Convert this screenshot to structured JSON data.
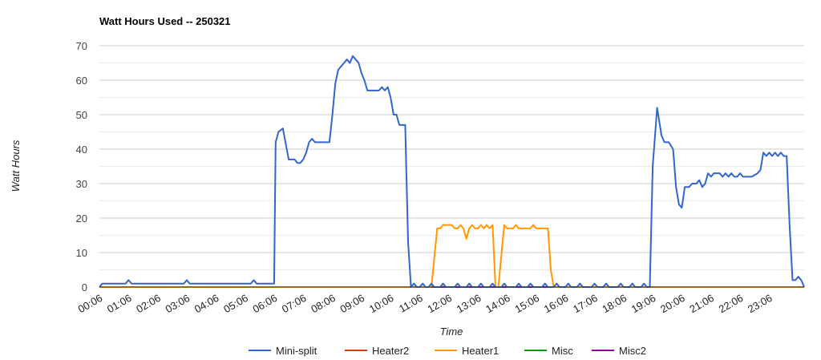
{
  "chart_data": {
    "type": "line",
    "title": "Watt Hours Used -- 250321",
    "xlabel": "Time",
    "ylabel": "Watt Hours",
    "ylim": [
      0,
      70
    ],
    "yticks": [
      0,
      10,
      20,
      30,
      40,
      50,
      60,
      70
    ],
    "xticks": [
      "00:06",
      "01:06",
      "02:06",
      "03:06",
      "04:06",
      "05:06",
      "06:06",
      "07:06",
      "08:06",
      "09:06",
      "10:06",
      "11:06",
      "12:06",
      "13:06",
      "14:06",
      "15:06",
      "16:06",
      "17:06",
      "18:06",
      "19:06",
      "20:06",
      "21:06",
      "22:06",
      "23:06"
    ],
    "grid": true,
    "legend_position": "bottom",
    "x_units": "hours after 00:06",
    "series": [
      {
        "name": "Mini-split",
        "color": "#3366cc",
        "points": [
          [
            0,
            0
          ],
          [
            0.1,
            1
          ],
          [
            0.3,
            1
          ],
          [
            0.6,
            1
          ],
          [
            0.9,
            1
          ],
          [
            1.0,
            2
          ],
          [
            1.1,
            1
          ],
          [
            1.4,
            1
          ],
          [
            1.7,
            1
          ],
          [
            2.0,
            1
          ],
          [
            2.3,
            1
          ],
          [
            2.6,
            1
          ],
          [
            2.9,
            1
          ],
          [
            3.0,
            2
          ],
          [
            3.1,
            1
          ],
          [
            3.4,
            1
          ],
          [
            3.7,
            1
          ],
          [
            4.0,
            1
          ],
          [
            4.3,
            1
          ],
          [
            4.6,
            1
          ],
          [
            4.9,
            1
          ],
          [
            5.2,
            1
          ],
          [
            5.3,
            2
          ],
          [
            5.4,
            1
          ],
          [
            5.6,
            1
          ],
          [
            6.0,
            1
          ],
          [
            6.05,
            42
          ],
          [
            6.15,
            45
          ],
          [
            6.3,
            46
          ],
          [
            6.5,
            37
          ],
          [
            6.7,
            37
          ],
          [
            6.8,
            36
          ],
          [
            6.9,
            36
          ],
          [
            7.0,
            37
          ],
          [
            7.1,
            39
          ],
          [
            7.2,
            42
          ],
          [
            7.3,
            43
          ],
          [
            7.4,
            42
          ],
          [
            7.6,
            42
          ],
          [
            7.9,
            42
          ],
          [
            8.0,
            50
          ],
          [
            8.1,
            59
          ],
          [
            8.2,
            63
          ],
          [
            8.4,
            65
          ],
          [
            8.5,
            66
          ],
          [
            8.6,
            65
          ],
          [
            8.7,
            67
          ],
          [
            8.8,
            66
          ],
          [
            8.9,
            65
          ],
          [
            9.0,
            62
          ],
          [
            9.1,
            60
          ],
          [
            9.2,
            57
          ],
          [
            9.4,
            57
          ],
          [
            9.6,
            57
          ],
          [
            9.7,
            58
          ],
          [
            9.8,
            57
          ],
          [
            9.9,
            58
          ],
          [
            10.0,
            55
          ],
          [
            10.1,
            50
          ],
          [
            10.2,
            50
          ],
          [
            10.3,
            47
          ],
          [
            10.5,
            47
          ],
          [
            10.6,
            13
          ],
          [
            10.7,
            0
          ],
          [
            10.8,
            1
          ],
          [
            10.9,
            0
          ],
          [
            11.0,
            0
          ],
          [
            11.1,
            1
          ],
          [
            11.2,
            0
          ],
          [
            11.3,
            0
          ],
          [
            11.4,
            1
          ],
          [
            11.5,
            0
          ],
          [
            11.7,
            0
          ],
          [
            11.8,
            1
          ],
          [
            11.9,
            0
          ],
          [
            12.2,
            0
          ],
          [
            12.3,
            1
          ],
          [
            12.4,
            0
          ],
          [
            12.6,
            0
          ],
          [
            12.7,
            1
          ],
          [
            12.8,
            0
          ],
          [
            13.0,
            0
          ],
          [
            13.1,
            1
          ],
          [
            13.2,
            0
          ],
          [
            13.4,
            0
          ],
          [
            13.5,
            1
          ],
          [
            13.6,
            0
          ],
          [
            13.8,
            0
          ],
          [
            13.9,
            1
          ],
          [
            14.0,
            0
          ],
          [
            14.3,
            0
          ],
          [
            14.4,
            1
          ],
          [
            14.5,
            0
          ],
          [
            14.7,
            0
          ],
          [
            14.8,
            1
          ],
          [
            14.9,
            0
          ],
          [
            15.2,
            0
          ],
          [
            15.3,
            1
          ],
          [
            15.4,
            0
          ],
          [
            15.6,
            0
          ],
          [
            15.7,
            1
          ],
          [
            15.8,
            0
          ],
          [
            16.0,
            0
          ],
          [
            16.1,
            1
          ],
          [
            16.2,
            0
          ],
          [
            16.4,
            0
          ],
          [
            16.5,
            1
          ],
          [
            16.6,
            0
          ],
          [
            16.9,
            0
          ],
          [
            17.0,
            1
          ],
          [
            17.1,
            0
          ],
          [
            17.3,
            0
          ],
          [
            17.4,
            1
          ],
          [
            17.5,
            0
          ],
          [
            17.8,
            0
          ],
          [
            17.9,
            1
          ],
          [
            18.0,
            0
          ],
          [
            18.2,
            0
          ],
          [
            18.3,
            1
          ],
          [
            18.4,
            0
          ],
          [
            18.6,
            0
          ],
          [
            18.7,
            1
          ],
          [
            18.8,
            0
          ],
          [
            18.9,
            0
          ],
          [
            19.0,
            35
          ],
          [
            19.15,
            52
          ],
          [
            19.3,
            44
          ],
          [
            19.4,
            42
          ],
          [
            19.55,
            42
          ],
          [
            19.7,
            40
          ],
          [
            19.8,
            29
          ],
          [
            19.9,
            24
          ],
          [
            20.0,
            23
          ],
          [
            20.1,
            29
          ],
          [
            20.25,
            29
          ],
          [
            20.35,
            30
          ],
          [
            20.5,
            30
          ],
          [
            20.6,
            31
          ],
          [
            20.7,
            29
          ],
          [
            20.8,
            30
          ],
          [
            20.9,
            33
          ],
          [
            21.0,
            32
          ],
          [
            21.1,
            33
          ],
          [
            21.3,
            33
          ],
          [
            21.4,
            32
          ],
          [
            21.5,
            33
          ],
          [
            21.6,
            32
          ],
          [
            21.7,
            33
          ],
          [
            21.8,
            32
          ],
          [
            21.9,
            32
          ],
          [
            22.0,
            33
          ],
          [
            22.1,
            32
          ],
          [
            22.4,
            32
          ],
          [
            22.6,
            33
          ],
          [
            22.7,
            34
          ],
          [
            22.8,
            39
          ],
          [
            22.9,
            38
          ],
          [
            23.0,
            39
          ],
          [
            23.1,
            38
          ],
          [
            23.2,
            39
          ],
          [
            23.3,
            38
          ],
          [
            23.4,
            39
          ],
          [
            23.5,
            38
          ],
          [
            23.6,
            38
          ],
          [
            23.7,
            18
          ],
          [
            23.8,
            2
          ],
          [
            23.9,
            2
          ],
          [
            24.0,
            3
          ],
          [
            24.1,
            2
          ],
          [
            24.2,
            0
          ]
        ]
      },
      {
        "name": "Heater2",
        "color": "#dc3912",
        "points": [
          [
            0,
            0
          ],
          [
            24.2,
            0
          ]
        ]
      },
      {
        "name": "Heater1",
        "color": "#ff9900",
        "points": [
          [
            0,
            0
          ],
          [
            11.4,
            0
          ],
          [
            11.6,
            17
          ],
          [
            11.7,
            17
          ],
          [
            11.8,
            18
          ],
          [
            12.0,
            18
          ],
          [
            12.1,
            18
          ],
          [
            12.2,
            17
          ],
          [
            12.3,
            17
          ],
          [
            12.4,
            18
          ],
          [
            12.5,
            17
          ],
          [
            12.6,
            14
          ],
          [
            12.7,
            17
          ],
          [
            12.8,
            18
          ],
          [
            12.9,
            17
          ],
          [
            13.0,
            17
          ],
          [
            13.1,
            18
          ],
          [
            13.2,
            17
          ],
          [
            13.3,
            18
          ],
          [
            13.4,
            17
          ],
          [
            13.5,
            18
          ],
          [
            13.6,
            0
          ],
          [
            13.7,
            0
          ],
          [
            13.9,
            18
          ],
          [
            14.0,
            17
          ],
          [
            14.2,
            17
          ],
          [
            14.3,
            18
          ],
          [
            14.4,
            17
          ],
          [
            14.6,
            17
          ],
          [
            14.8,
            17
          ],
          [
            14.9,
            18
          ],
          [
            15.0,
            17
          ],
          [
            15.3,
            17
          ],
          [
            15.4,
            17
          ],
          [
            15.5,
            5
          ],
          [
            15.6,
            0
          ],
          [
            24.2,
            0
          ]
        ]
      },
      {
        "name": "Misc",
        "color": "#109618",
        "points": [
          [
            0,
            0
          ],
          [
            24.2,
            0
          ]
        ]
      },
      {
        "name": "Misc2",
        "color": "#990099",
        "points": [
          [
            0,
            0
          ],
          [
            24.2,
            0
          ]
        ]
      }
    ]
  }
}
